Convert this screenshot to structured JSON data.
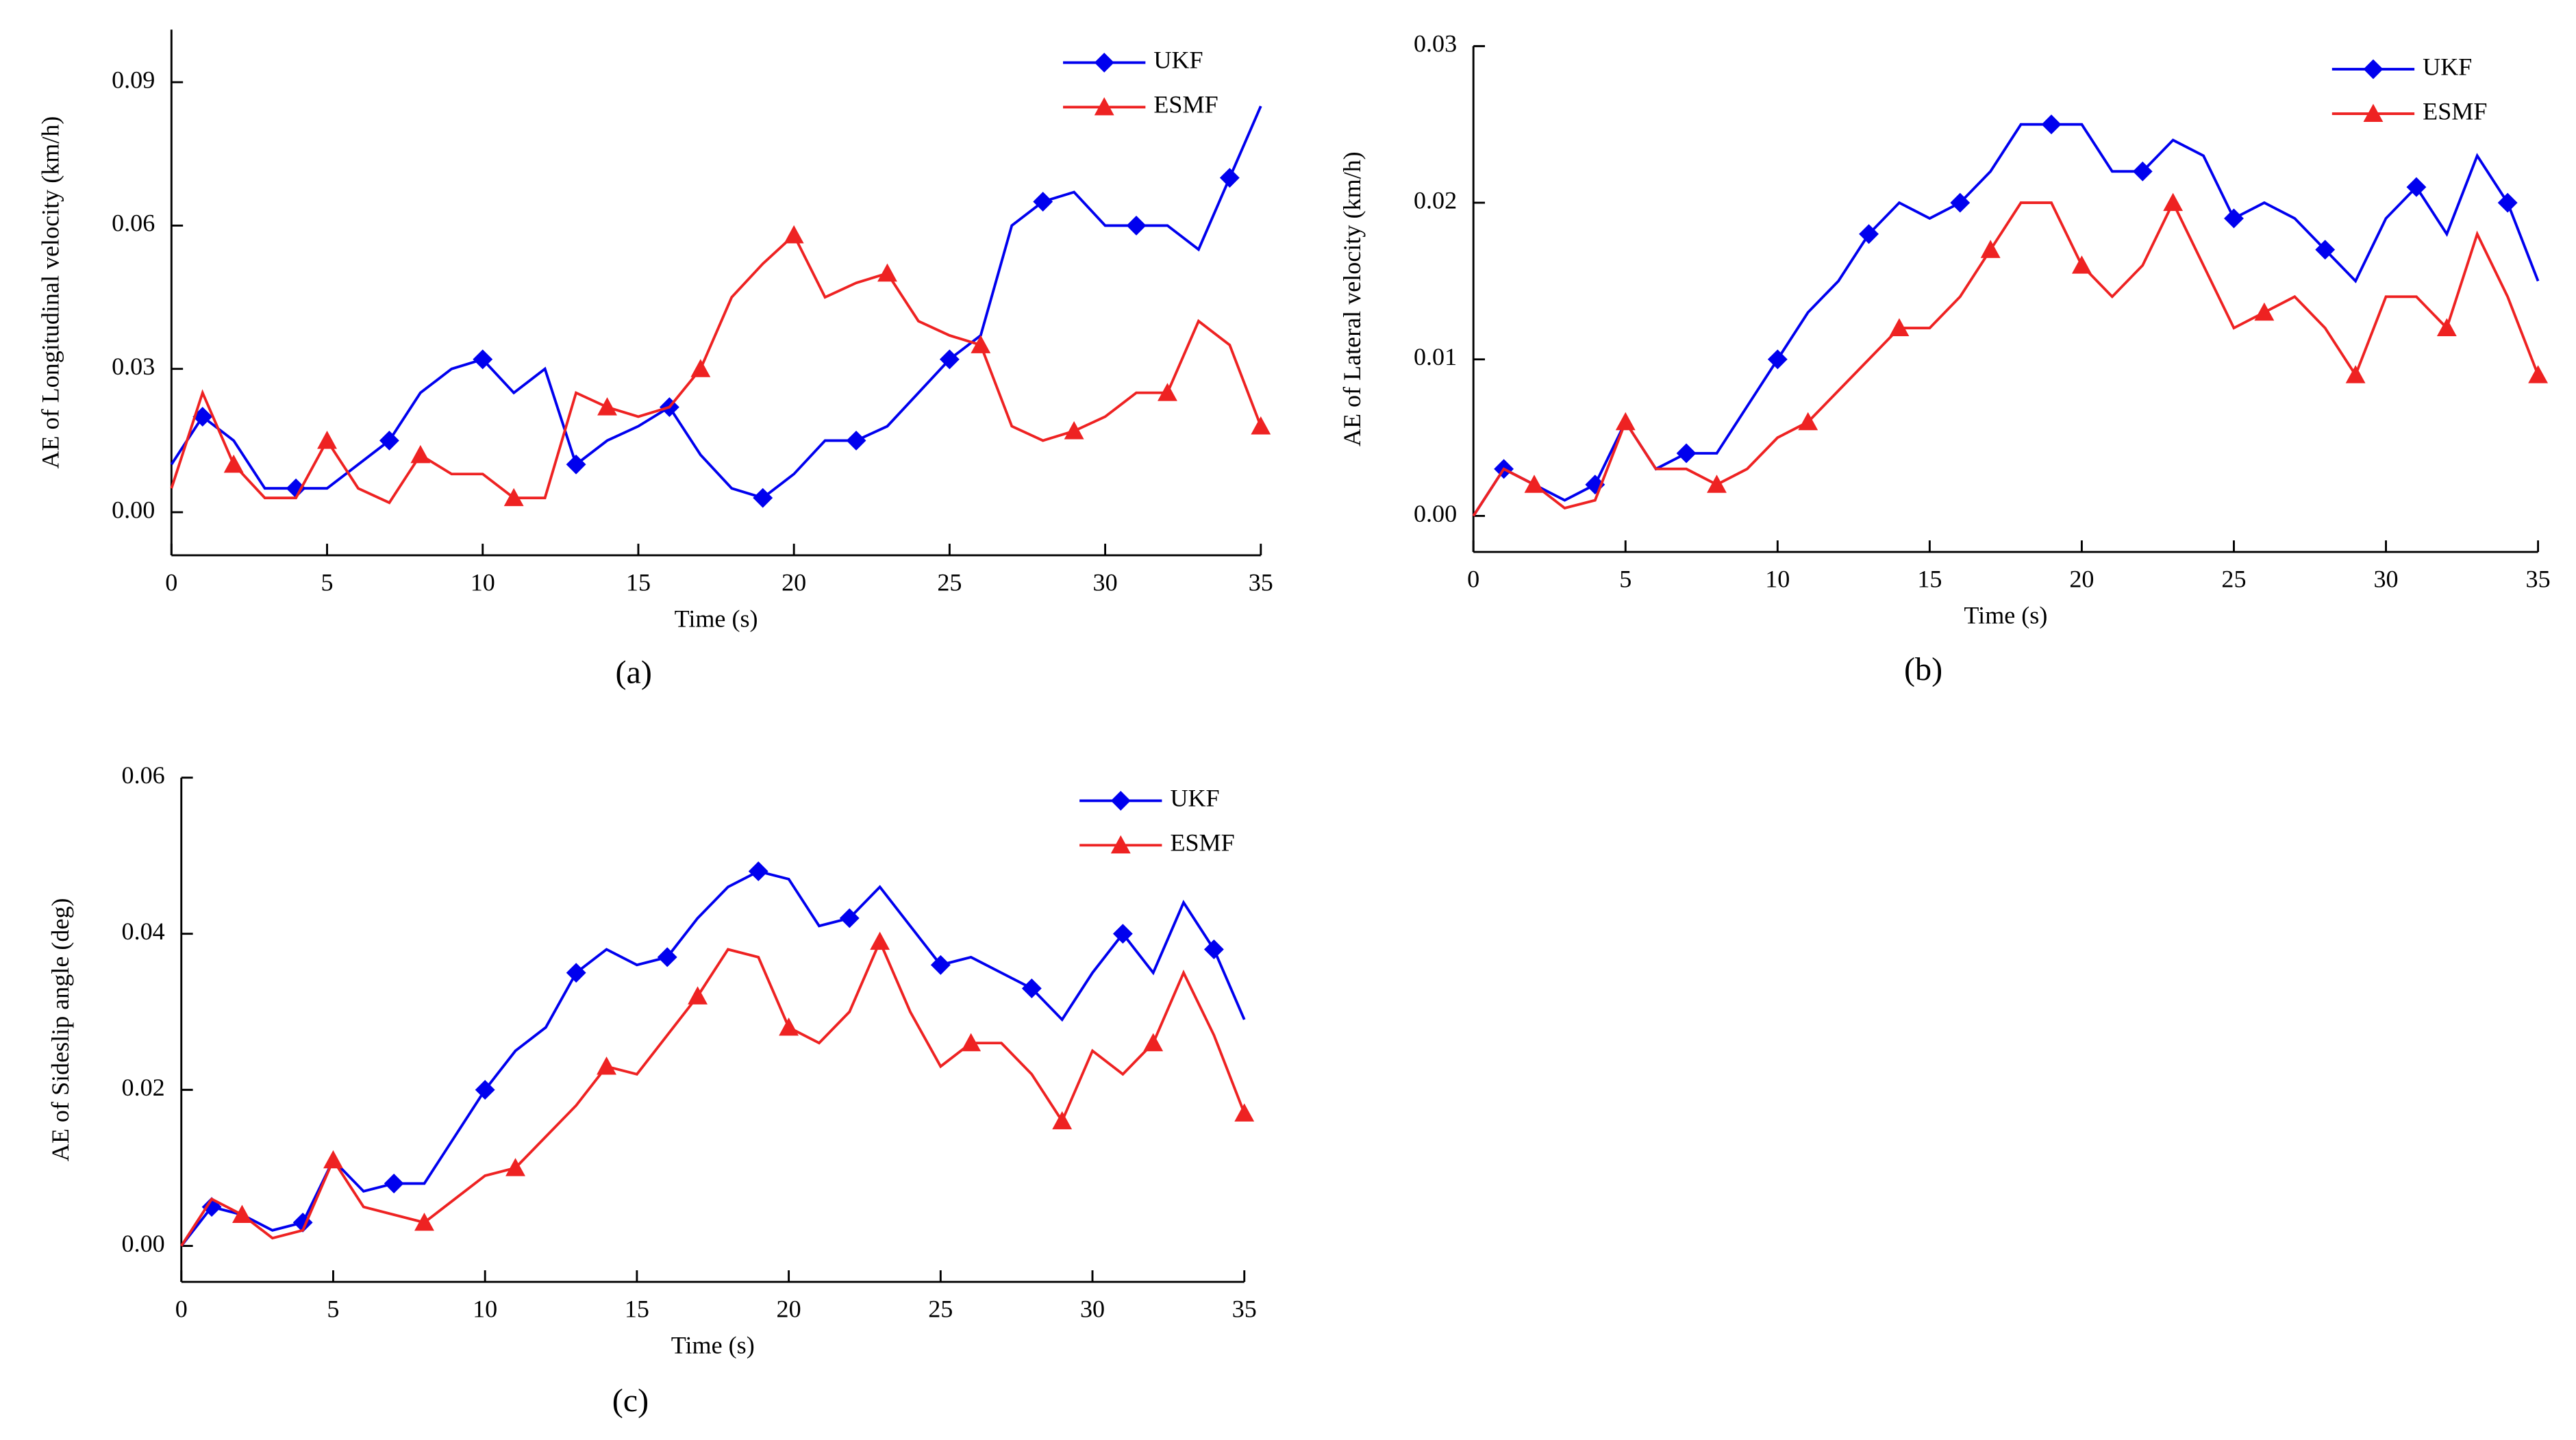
{
  "chart_data": [
    {
      "type": "line",
      "panel_label": "(a)",
      "xlabel": "Time (s)",
      "ylabel": "AE of Longitudinal velocity (km/h)",
      "x": [
        0,
        1,
        2,
        3,
        4,
        5,
        6,
        7,
        8,
        9,
        10,
        11,
        12,
        13,
        14,
        15,
        16,
        17,
        18,
        19,
        20,
        21,
        22,
        23,
        24,
        25,
        26,
        27,
        28,
        29,
        30,
        31,
        32,
        33,
        34,
        35
      ],
      "series": [
        {
          "name": "UKF",
          "color": "#0000ee",
          "marker": "diamond",
          "values": [
            0.01,
            0.02,
            0.015,
            0.005,
            0.005,
            0.005,
            0.01,
            0.015,
            0.025,
            0.03,
            0.032,
            0.025,
            0.03,
            0.01,
            0.015,
            0.018,
            0.022,
            0.012,
            0.005,
            0.003,
            0.008,
            0.015,
            0.015,
            0.018,
            0.025,
            0.032,
            0.037,
            0.06,
            0.065,
            0.067,
            0.06,
            0.06,
            0.06,
            0.055,
            0.07,
            0.085
          ]
        },
        {
          "name": "ESMF",
          "color": "#ee2222",
          "marker": "triangle",
          "values": [
            0.005,
            0.025,
            0.01,
            0.003,
            0.003,
            0.015,
            0.005,
            0.002,
            0.012,
            0.008,
            0.008,
            0.003,
            0.003,
            0.025,
            0.022,
            0.02,
            0.022,
            0.03,
            0.045,
            0.052,
            0.058,
            0.045,
            0.048,
            0.05,
            0.04,
            0.037,
            0.035,
            0.018,
            0.015,
            0.017,
            0.02,
            0.025,
            0.025,
            0.04,
            0.035,
            0.018
          ]
        }
      ],
      "xlim": [
        0,
        35
      ],
      "xticks": [
        0,
        5,
        10,
        15,
        20,
        25,
        30,
        35
      ],
      "ylim": [
        -0.009,
        0.101
      ],
      "yticks": [
        {
          "value": 0,
          "label": "0.00"
        },
        {
          "value": 0.03,
          "label": "0.03"
        },
        {
          "value": 0.06,
          "label": "0.06"
        },
        {
          "value": 0.09,
          "label": "0.09"
        }
      ],
      "legend": "upper right"
    },
    {
      "type": "line",
      "panel_label": "(b)",
      "xlabel": "Time (s)",
      "ylabel": "AE of Lateral velocity (km/h)",
      "x": [
        0,
        1,
        2,
        3,
        4,
        5,
        6,
        7,
        8,
        9,
        10,
        11,
        12,
        13,
        14,
        15,
        16,
        17,
        18,
        19,
        20,
        21,
        22,
        23,
        24,
        25,
        26,
        27,
        28,
        29,
        30,
        31,
        32,
        33,
        34,
        35
      ],
      "series": [
        {
          "name": "UKF",
          "color": "#0000ee",
          "marker": "diamond",
          "values": [
            0,
            0.003,
            0.002,
            0.001,
            0.002,
            0.006,
            0.003,
            0.004,
            0.004,
            0.007,
            0.01,
            0.013,
            0.015,
            0.018,
            0.02,
            0.019,
            0.02,
            0.022,
            0.025,
            0.025,
            0.025,
            0.022,
            0.022,
            0.024,
            0.023,
            0.019,
            0.02,
            0.019,
            0.017,
            0.015,
            0.019,
            0.021,
            0.018,
            0.023,
            0.02,
            0.015
          ]
        },
        {
          "name": "ESMF",
          "color": "#ee2222",
          "marker": "triangle",
          "values": [
            0,
            0.003,
            0.002,
            0.0005,
            0.001,
            0.006,
            0.003,
            0.003,
            0.002,
            0.003,
            0.005,
            0.006,
            0.008,
            0.01,
            0.012,
            0.012,
            0.014,
            0.017,
            0.02,
            0.02,
            0.016,
            0.014,
            0.016,
            0.02,
            0.016,
            0.012,
            0.013,
            0.014,
            0.012,
            0.009,
            0.014,
            0.014,
            0.012,
            0.018,
            0.014,
            0.009
          ]
        }
      ],
      "xlim": [
        0,
        35
      ],
      "xticks": [
        0,
        5,
        10,
        15,
        20,
        25,
        30,
        35
      ],
      "ylim": [
        -0.0023,
        0.03
      ],
      "yticks": [
        {
          "value": 0,
          "label": "0.00"
        },
        {
          "value": 0.01,
          "label": "0.01"
        },
        {
          "value": 0.02,
          "label": "0.02"
        },
        {
          "value": 0.03,
          "label": "0.03"
        }
      ],
      "legend": "upper right"
    },
    {
      "type": "line",
      "panel_label": "(c)",
      "xlabel": "Time (s)",
      "ylabel": "AE of Sideslip angle (deg)",
      "x": [
        0,
        1,
        2,
        3,
        4,
        5,
        6,
        7,
        8,
        9,
        10,
        11,
        12,
        13,
        14,
        15,
        16,
        17,
        18,
        19,
        20,
        21,
        22,
        23,
        24,
        25,
        26,
        27,
        28,
        29,
        30,
        31,
        32,
        33,
        34,
        35
      ],
      "series": [
        {
          "name": "UKF",
          "color": "#0000ee",
          "marker": "diamond",
          "values": [
            0,
            0.005,
            0.004,
            0.002,
            0.003,
            0.011,
            0.007,
            0.008,
            0.008,
            0.014,
            0.02,
            0.025,
            0.028,
            0.035,
            0.038,
            0.036,
            0.037,
            0.042,
            0.046,
            0.048,
            0.047,
            0.041,
            0.042,
            0.046,
            0.041,
            0.036,
            0.037,
            0.035,
            0.033,
            0.029,
            0.035,
            0.04,
            0.035,
            0.044,
            0.038,
            0.029
          ]
        },
        {
          "name": "ESMF",
          "color": "#ee2222",
          "marker": "triangle",
          "values": [
            0,
            0.006,
            0.004,
            0.001,
            0.002,
            0.011,
            0.005,
            0.004,
            0.003,
            0.006,
            0.009,
            0.01,
            0.014,
            0.018,
            0.023,
            0.022,
            0.027,
            0.032,
            0.038,
            0.037,
            0.028,
            0.026,
            0.03,
            0.039,
            0.03,
            0.023,
            0.026,
            0.026,
            0.022,
            0.016,
            0.025,
            0.022,
            0.026,
            0.035,
            0.027,
            0.017
          ]
        }
      ],
      "xlim": [
        0,
        35
      ],
      "xticks": [
        0,
        5,
        10,
        15,
        20,
        25,
        30,
        35
      ],
      "ylim": [
        -0.0046,
        0.06
      ],
      "yticks": [
        {
          "value": 0,
          "label": "0.00"
        },
        {
          "value": 0.02,
          "label": "0.02"
        },
        {
          "value": 0.04,
          "label": "0.04"
        },
        {
          "value": 0.06,
          "label": "0.06"
        }
      ],
      "legend": "upper right"
    }
  ]
}
